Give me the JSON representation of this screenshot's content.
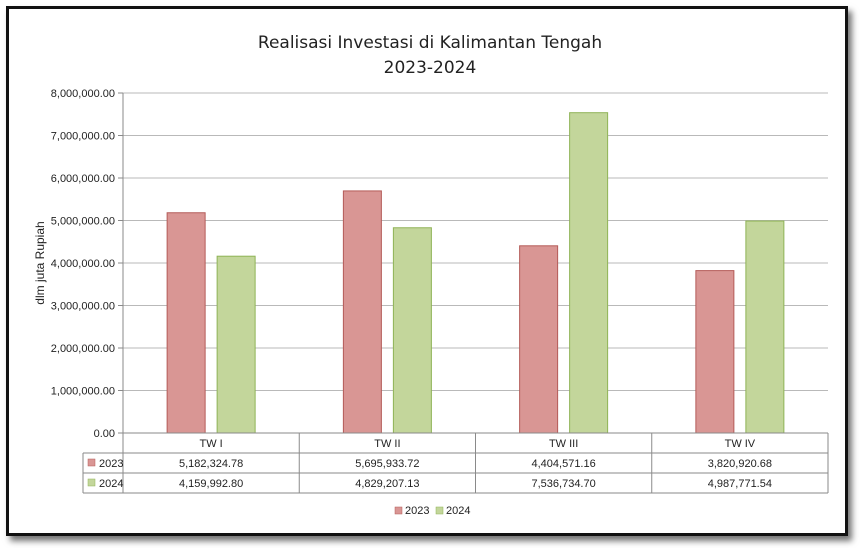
{
  "chart_data": {
    "type": "bar",
    "title": "Realisasi Investasi di Kalimantan Tengah",
    "subtitle": "2023-2024",
    "ylabel": "dlm juta Rupiah",
    "xlabel": "",
    "categories": [
      "TW I",
      "TW II",
      "TW III",
      "TW IV"
    ],
    "ylim": [
      0,
      8000000
    ],
    "yticks": [
      "0.00",
      "1,000,000.00",
      "2,000,000.00",
      "3,000,000.00",
      "4,000,000.00",
      "5,000,000.00",
      "6,000,000.00",
      "7,000,000.00",
      "8,000,000.00"
    ],
    "grid": true,
    "legend_position": "bottom",
    "data_table": true,
    "series": [
      {
        "name": "2023",
        "color": "#d99694",
        "stroke": "#b45b58",
        "values": [
          5182324.78,
          5695933.72,
          4404571.16,
          3820920.68
        ],
        "labels": [
          "5,182,324.78",
          "5,695,933.72",
          "4,404,571.16",
          "3,820,920.68"
        ]
      },
      {
        "name": "2024",
        "color": "#c3d69b",
        "stroke": "#8fb356",
        "values": [
          4159992.8,
          4829207.13,
          7536734.7,
          4987771.54
        ],
        "labels": [
          "4,159,992.80",
          "4,829,207.13",
          "7,536,734.70",
          "4,987,771.54"
        ]
      }
    ]
  }
}
